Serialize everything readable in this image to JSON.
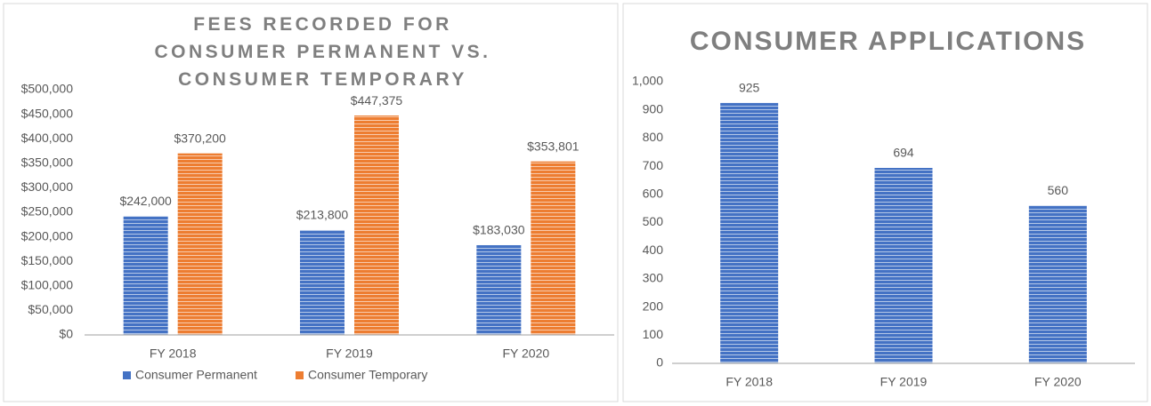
{
  "chart_data": [
    {
      "type": "bar",
      "title": "FEES RECORDED FOR CONSUMER PERMANENT VS. CONSUMER TEMPORARY",
      "categories": [
        "FY 2018",
        "FY 2019",
        "FY 2020"
      ],
      "series": [
        {
          "name": "Consumer Permanent",
          "color": "#4472c4",
          "values": [
            242000,
            213800,
            183030
          ],
          "value_labels": [
            "$242,000",
            "$213,800",
            "$183,030"
          ]
        },
        {
          "name": "Consumer Temporary",
          "color": "#ed7d31",
          "values": [
            370200,
            447375,
            353801
          ],
          "value_labels": [
            "$370,200",
            "$447,375",
            "$353,801"
          ]
        }
      ],
      "ylim": [
        0,
        500000
      ],
      "yticks": [
        {
          "value": 0,
          "label": "$0"
        },
        {
          "value": 50000,
          "label": "$50,000"
        },
        {
          "value": 100000,
          "label": "$100,000"
        },
        {
          "value": 150000,
          "label": "$150,000"
        },
        {
          "value": 200000,
          "label": "$200,000"
        },
        {
          "value": 250000,
          "label": "$250,000"
        },
        {
          "value": 300000,
          "label": "$300,000"
        },
        {
          "value": 350000,
          "label": "$350,000"
        },
        {
          "value": 400000,
          "label": "$400,000"
        },
        {
          "value": 450000,
          "label": "$450,000"
        },
        {
          "value": 500000,
          "label": "$500,000"
        }
      ],
      "legend": "bottom",
      "grid": false
    },
    {
      "type": "bar",
      "title": "CONSUMER APPLICATIONS",
      "categories": [
        "FY 2018",
        "FY 2019",
        "FY 2020"
      ],
      "series": [
        {
          "color": "#4472c4",
          "values": [
            925,
            694,
            560
          ]
        }
      ],
      "ylim": [
        0,
        1000
      ],
      "yticks": [
        0,
        100,
        200,
        300,
        400,
        500,
        600,
        700,
        800,
        900,
        {
          "value": 1000,
          "label": "1,000"
        }
      ],
      "grid": false
    }
  ]
}
